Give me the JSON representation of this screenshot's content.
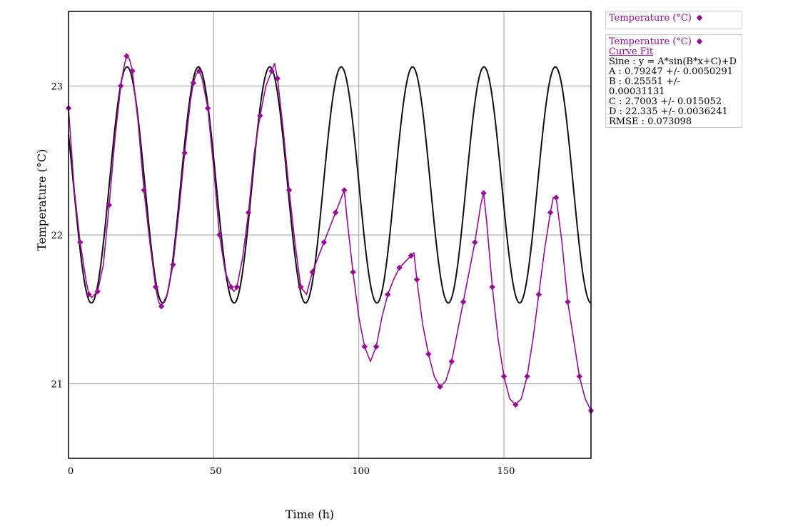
{
  "chart_data": {
    "type": "line",
    "xlabel": "Time (h)",
    "ylabel": "Temperature (°C)",
    "xlim": [
      0,
      180
    ],
    "ylim": [
      20.5,
      23.5
    ],
    "x_ticks": [
      0,
      50,
      100,
      150
    ],
    "y_ticks": [
      21,
      22,
      23
    ],
    "grid": true,
    "colors": {
      "data": "#9b0a9b",
      "fit": "#111111"
    },
    "series": [
      {
        "name": "Temperature (°C)",
        "kind": "data",
        "x": [
          0,
          2,
          4,
          6,
          7,
          8,
          10,
          12,
          14,
          16,
          18,
          19,
          20,
          21,
          22,
          24,
          26,
          28,
          30,
          31,
          32,
          34,
          36,
          38,
          40,
          42,
          43,
          44,
          45,
          46,
          48,
          50,
          52,
          54,
          56,
          57,
          58,
          60,
          62,
          64,
          66,
          68,
          70,
          71,
          72,
          74,
          76,
          78,
          80,
          82,
          84,
          86,
          88,
          90,
          92,
          94,
          95,
          96,
          98,
          100,
          102,
          104,
          106,
          108,
          110,
          112,
          114,
          116,
          118,
          119,
          120,
          122,
          124,
          126,
          128,
          130,
          132,
          134,
          136,
          138,
          140,
          142,
          143,
          144,
          146,
          148,
          150,
          152,
          154,
          156,
          158,
          160,
          162,
          164,
          166,
          167,
          168,
          170,
          172,
          174,
          176,
          178,
          180
        ],
        "values": [
          22.85,
          22.3,
          21.95,
          21.7,
          21.6,
          21.58,
          21.62,
          21.8,
          22.2,
          22.65,
          23.0,
          23.12,
          23.2,
          23.18,
          23.1,
          22.75,
          22.3,
          21.95,
          21.65,
          21.55,
          21.52,
          21.6,
          21.8,
          22.15,
          22.55,
          22.9,
          23.02,
          23.08,
          23.1,
          23.05,
          22.85,
          22.45,
          22.0,
          21.75,
          21.65,
          21.62,
          21.65,
          21.85,
          22.15,
          22.55,
          22.8,
          23.0,
          23.1,
          23.15,
          23.05,
          22.7,
          22.3,
          21.95,
          21.65,
          21.6,
          21.75,
          21.85,
          21.95,
          22.05,
          22.15,
          22.25,
          22.3,
          22.1,
          21.75,
          21.45,
          21.25,
          21.15,
          21.25,
          21.45,
          21.6,
          21.7,
          21.78,
          21.82,
          21.86,
          21.88,
          21.7,
          21.4,
          21.2,
          21.05,
          20.98,
          21.02,
          21.15,
          21.35,
          21.55,
          21.75,
          21.95,
          22.2,
          22.28,
          22.1,
          21.65,
          21.3,
          21.05,
          20.9,
          20.86,
          20.9,
          21.05,
          21.3,
          21.6,
          21.9,
          22.15,
          22.25,
          22.25,
          21.95,
          21.55,
          21.3,
          21.05,
          20.9,
          20.82
        ]
      },
      {
        "name": "",
        "kind": "fit",
        "formula": "y = A*sin(B*x+C)+D",
        "A": 0.79247,
        "B": 0.25551,
        "C": 2.7003,
        "D": 22.335
      }
    ]
  },
  "axes": {
    "xlabel": "Time (h)",
    "ylabel": "Temperature (°C)",
    "x_tick_labels": [
      "0",
      "50",
      "100",
      "150"
    ],
    "y_tick_labels": [
      "21",
      "22",
      "23"
    ]
  },
  "legend": {
    "series1": "Temperature (°C)",
    "series2": "Temperature (°C)",
    "curve_fit_link": "Curve Fit",
    "fit_lines": [
      "Sine : y = A*sin(B*x+C)+D",
      "A : 0.79247 +/- 0.0050291",
      "B : 0.25551 +/- 0.00031131",
      "C : 2.7003 +/- 0.015052",
      "D : 22.335 +/- 0.0036241",
      "RMSE : 0.073098"
    ]
  }
}
